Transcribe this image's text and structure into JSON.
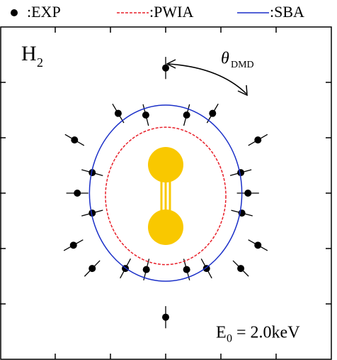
{
  "chart_data": {
    "type": "polar-scatter",
    "legend_position": "top",
    "label": {
      "main": "H",
      "sub": "2"
    },
    "angle_label": {
      "main": "θ",
      "sub": "DMD"
    },
    "energy_label": {
      "main": "E",
      "sub": "0",
      "rest": " = 2.0keV"
    },
    "xlim": [
      -3,
      3
    ],
    "ylim": [
      -3,
      3
    ],
    "xticks": [
      -2,
      -1,
      0,
      1,
      2
    ],
    "yticks": [
      -2,
      -1,
      0,
      1,
      2
    ],
    "series": [
      {
        "name": ":EXP",
        "kind": "points",
        "color": "#000000",
        "x": [
          0,
          -0.86,
          0.85,
          -0.36,
          0.38,
          -1.65,
          1.67,
          -1.33,
          1.36,
          -1.6,
          1.49,
          -1.33,
          1.38,
          -1.67,
          1.67,
          -1.33,
          1.36,
          -0.73,
          0.74,
          -0.35,
          0.38,
          0
        ],
        "y": [
          2.26,
          1.44,
          1.44,
          1.41,
          1.41,
          0.96,
          0.96,
          0.37,
          0.37,
          0,
          0,
          -0.36,
          -0.36,
          -0.94,
          -0.94,
          -1.36,
          -1.36,
          -1.36,
          -1.36,
          -1.38,
          -1.38,
          -2.24
        ],
        "errors": [
          0.2,
          0.2,
          0.2,
          0.2,
          0.2,
          0.2,
          0.2,
          0.2,
          0.2,
          0.2,
          0.2,
          0.2,
          0.2,
          0.2,
          0.2,
          0.2,
          0.2,
          0.2,
          0.2,
          0.2,
          0.2,
          0.2
        ]
      },
      {
        "name": ":PWIA",
        "kind": "ellipse",
        "color": "#e8202a",
        "dashed": true,
        "center": [
          0,
          -0.05
        ],
        "semi_axes": [
          1.09,
          1.24
        ]
      },
      {
        "name": ":SBA",
        "kind": "ellipse",
        "color": "#1a2fc8",
        "dashed": false,
        "center": [
          0,
          0
        ],
        "semi_axes": [
          1.38,
          1.59
        ]
      }
    ]
  }
}
